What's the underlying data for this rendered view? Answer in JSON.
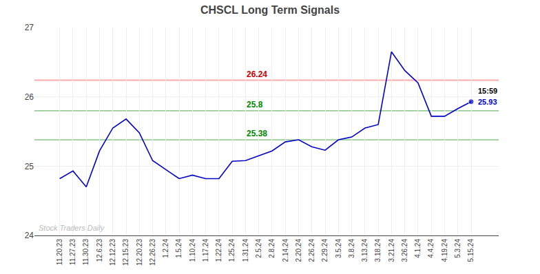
{
  "chart_data": {
    "type": "line",
    "title": "CHSCL Long Term Signals",
    "categories": [
      "11.20.23",
      "11.27.23",
      "11.30.23",
      "12.6.23",
      "12.12.23",
      "12.15.23",
      "12.20.23",
      "12.26.23",
      "1.2.24",
      "1.5.24",
      "1.10.24",
      "1.17.24",
      "1.22.24",
      "1.25.24",
      "1.31.24",
      "2.5.24",
      "2.8.24",
      "2.14.24",
      "2.20.24",
      "2.26.24",
      "2.29.24",
      "3.5.24",
      "3.8.24",
      "3.13.24",
      "3.18.24",
      "3.21.24",
      "3.26.24",
      "4.1.24",
      "4.4.24",
      "4.19.24",
      "5.3.24",
      "5.15.24"
    ],
    "values": [
      24.82,
      24.93,
      24.7,
      25.22,
      25.55,
      25.68,
      25.48,
      25.08,
      24.95,
      24.82,
      24.87,
      24.82,
      24.82,
      25.07,
      25.08,
      25.15,
      25.22,
      25.35,
      25.38,
      25.28,
      25.23,
      25.38,
      25.42,
      25.55,
      25.6,
      26.65,
      26.38,
      26.2,
      25.72,
      25.72,
      25.83,
      25.93
    ],
    "color": "#0000cc",
    "ylim": [
      24,
      27
    ],
    "yticks": [
      24,
      25,
      26,
      27
    ],
    "grid": true,
    "hlines": [
      {
        "value": 26.24,
        "label": "26.24",
        "color": "#ffaaaa",
        "label_color": "#cc0000",
        "label_at": "1.31.24"
      },
      {
        "value": 25.8,
        "label": "25.8",
        "color": "#99cc99",
        "label_color": "#008800",
        "label_at": "1.31.24"
      },
      {
        "value": 25.38,
        "label": "25.38",
        "color": "#99cc99",
        "label_color": "#008800",
        "label_at": "1.31.24"
      }
    ],
    "last_time": "15:59",
    "last_price": "25.93",
    "watermark": {
      "text": "Stock Traders Daily",
      "color": "#bbbbbb"
    }
  }
}
